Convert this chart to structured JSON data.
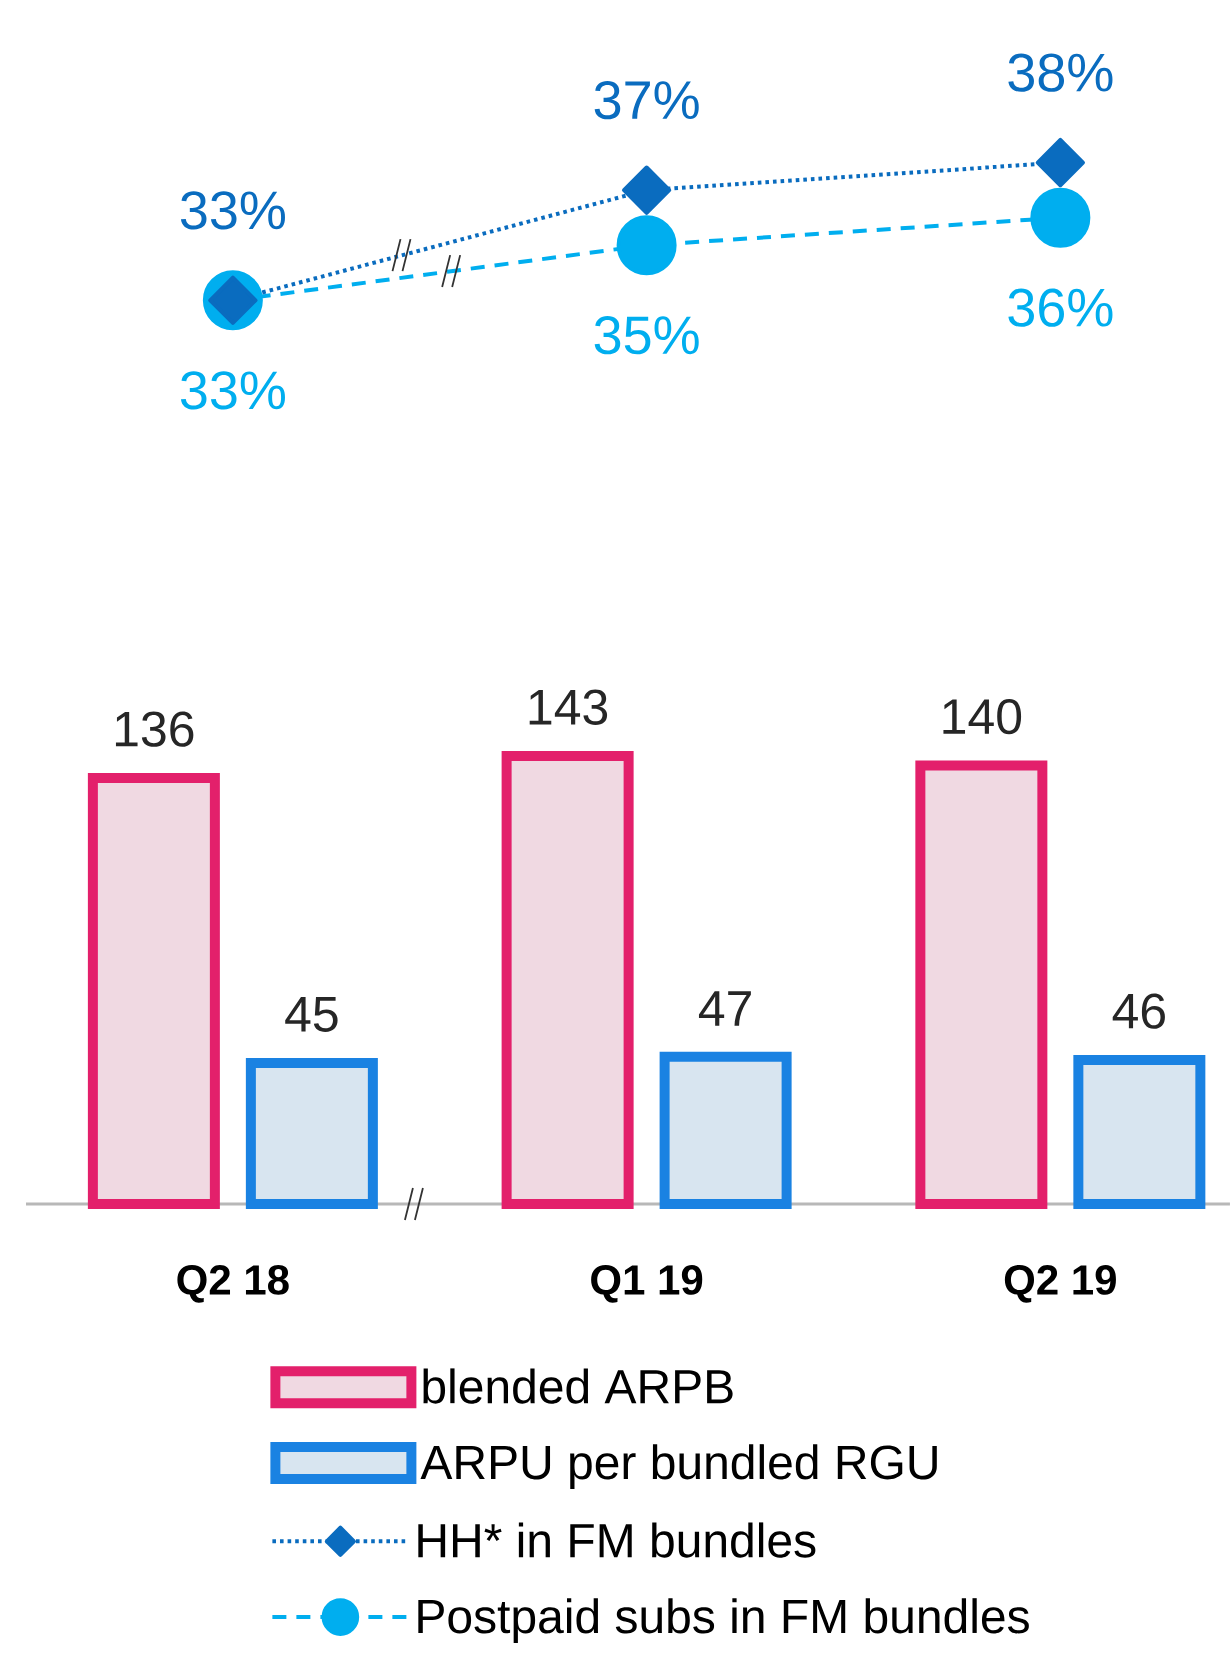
{
  "chart_data": [
    {
      "type": "line",
      "categories": [
        null,
        null,
        null
      ],
      "series": [
        {
          "name": "HH* in FM bundles",
          "color": "#0a6cbf",
          "marker": "diamond",
          "line_style": "dotted",
          "values": [
            33,
            37,
            38
          ],
          "value_labels": [
            "33%",
            "37%",
            "38%"
          ]
        },
        {
          "name": "Postpaid subs in FM bundles",
          "color": "#00aeef",
          "marker": "circle",
          "line_style": "dashed",
          "values": [
            33,
            35,
            36
          ],
          "value_labels": [
            "33%",
            "35%",
            "36%"
          ]
        }
      ],
      "tick_labels": false,
      "legend": "bottom"
    },
    {
      "type": "bar",
      "categories": [
        "Q2 18",
        "Q1 19",
        "Q2 19"
      ],
      "series": [
        {
          "name": "blended ARPB",
          "color": "#e3206b",
          "values": [
            136,
            143,
            140
          ],
          "value_labels": [
            "136",
            "143",
            "140"
          ]
        },
        {
          "name": "ARPU per bundled RGU",
          "color": "#1a82e2",
          "values": [
            45,
            47,
            46
          ],
          "value_labels": [
            "45",
            "47",
            "46"
          ]
        }
      ],
      "tick_labels": "x",
      "legend": "bottom"
    }
  ]
}
